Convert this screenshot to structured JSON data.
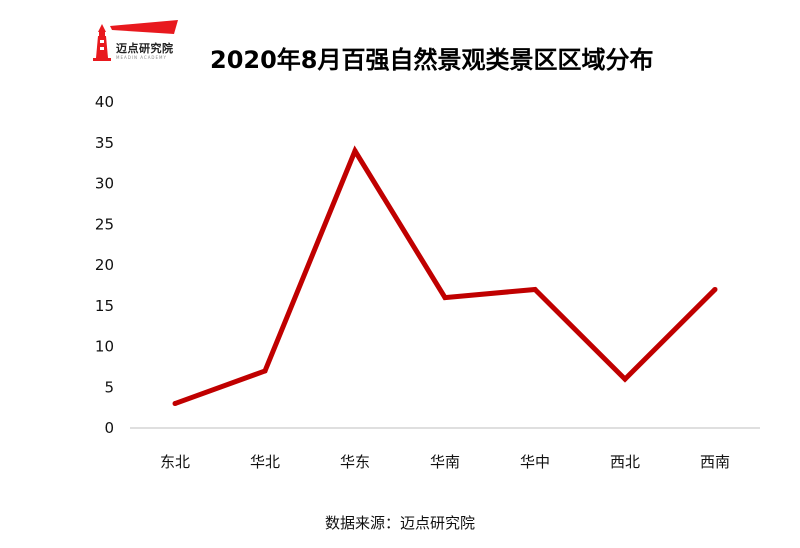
{
  "logo": {
    "name": "迈点研究院",
    "subtitle": "MEADIN ACADEMY"
  },
  "source": "数据来源：迈点研究院",
  "colors": {
    "line": "#c00000",
    "logo_red": "#e8191e",
    "axis": "#bfbfbf"
  },
  "chart_data": {
    "type": "line",
    "title": "2020年8月百强自然景观类景区区域分布",
    "categories": [
      "东北",
      "华北",
      "华东",
      "华南",
      "华中",
      "西北",
      "西南"
    ],
    "series": [
      {
        "values": [
          3,
          7,
          34,
          16,
          17,
          6,
          17
        ]
      }
    ],
    "ylim": [
      0,
      40
    ],
    "yticks": [
      0,
      5,
      10,
      15,
      20,
      25,
      30,
      35,
      40
    ],
    "grid": false,
    "legend": "none",
    "xlabel": "",
    "ylabel": ""
  }
}
